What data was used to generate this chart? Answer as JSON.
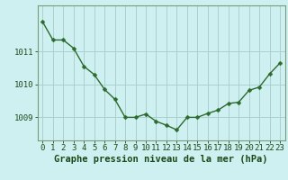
{
  "x": [
    0,
    1,
    2,
    3,
    4,
    5,
    6,
    7,
    8,
    9,
    10,
    11,
    12,
    13,
    14,
    15,
    16,
    17,
    18,
    19,
    20,
    21,
    22,
    23
  ],
  "y": [
    1011.9,
    1011.35,
    1011.35,
    1011.1,
    1010.55,
    1010.3,
    1009.85,
    1009.55,
    1009.0,
    1009.0,
    1009.1,
    1008.88,
    1008.76,
    1008.62,
    1009.0,
    1009.0,
    1009.12,
    1009.22,
    1009.42,
    1009.46,
    1009.82,
    1009.92,
    1010.32,
    1010.65
  ],
  "line_color": "#2d6a2d",
  "marker": "D",
  "marker_size": 2.5,
  "bg_color": "#cef0f0",
  "grid_color": "#aacfcf",
  "xlabel": "Graphe pression niveau de la mer (hPa)",
  "xlabel_fontsize": 7.5,
  "ylabel_ticks": [
    1009,
    1010,
    1011
  ],
  "ylim": [
    1008.3,
    1012.4
  ],
  "xlim": [
    -0.5,
    23.5
  ],
  "tick_fontsize": 6.5,
  "line_width": 1.0
}
